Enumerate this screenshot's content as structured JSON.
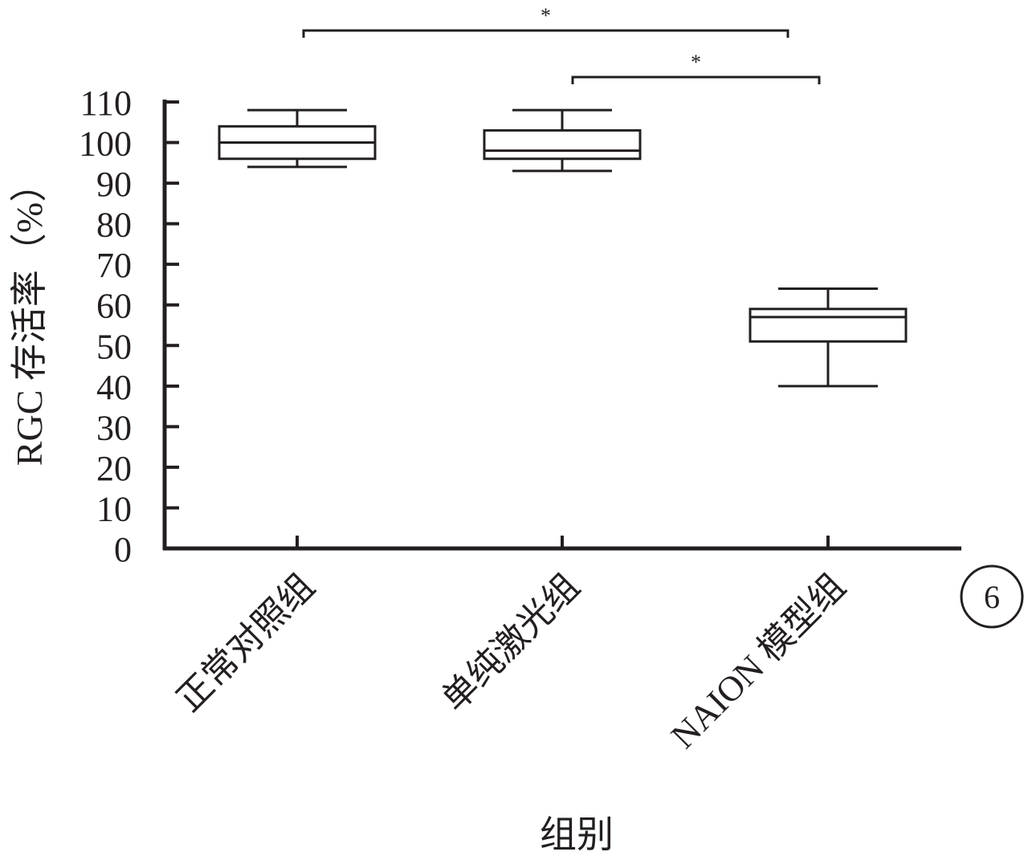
{
  "chart_data": {
    "type": "box",
    "xlabel": "组别",
    "ylabel": "RGC 存活率（%）",
    "ylim": [
      0,
      110
    ],
    "yticks": [
      0,
      10,
      20,
      30,
      40,
      50,
      60,
      70,
      80,
      90,
      100,
      110
    ],
    "categories": [
      "正常对照组",
      "单纯激光组",
      "NAION 模型组"
    ],
    "boxes": [
      {
        "category": "正常对照组",
        "min": 94,
        "q1": 96,
        "median": 100,
        "q3": 104,
        "max": 108
      },
      {
        "category": "单纯激光组",
        "min": 93,
        "q1": 96,
        "median": 98,
        "q3": 103,
        "max": 108
      },
      {
        "category": "NAION 模型组",
        "min": 40,
        "q1": 51,
        "median": 57,
        "q3": 59,
        "max": 64
      }
    ],
    "significance": [
      {
        "from": "正常对照组",
        "to": "NAION 模型组",
        "label": "*"
      },
      {
        "from": "单纯激光组",
        "to": "NAION 模型组",
        "label": "*"
      }
    ],
    "panel_label": "6",
    "grid": false,
    "colors": {
      "ink": "#231f20",
      "background": "#ffffff"
    }
  }
}
